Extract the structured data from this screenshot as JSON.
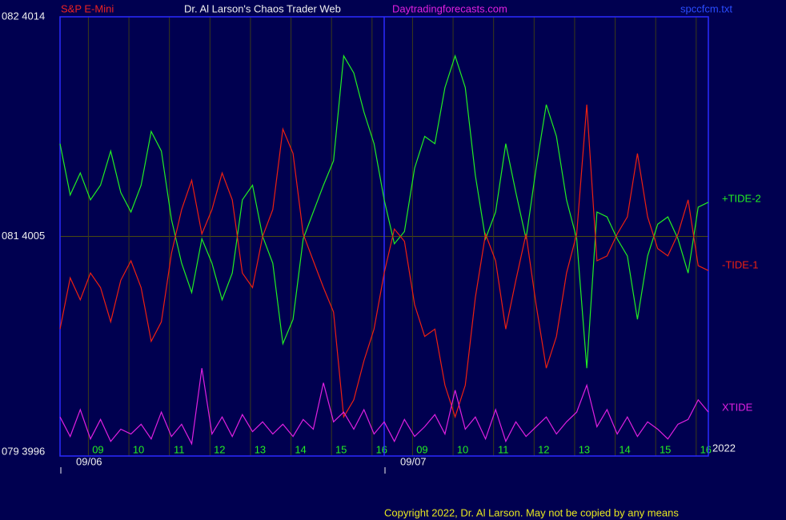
{
  "chart_data": {
    "type": "line",
    "instrument": "S&P E-Mini",
    "title": "Dr. Al Larson's Chaos Trader Web",
    "website": "Daytradingforecasts.com",
    "file_name": "spccfcm.txt",
    "year": "2022",
    "copyright": "Copyright 2022, Dr. Al Larson. May not be copied by any means",
    "x": [
      0,
      0.25,
      0.5,
      0.75,
      1,
      1.25,
      1.5,
      1.75,
      2,
      2.25,
      2.5,
      2.75,
      3,
      3.25,
      3.5,
      3.75,
      4,
      4.25,
      4.5,
      4.75,
      5,
      5.25,
      5.5,
      5.75,
      6,
      6.25,
      6.5,
      6.75,
      7,
      7.25,
      7.5,
      7.75,
      8,
      8.25,
      8.5,
      8.75,
      9,
      9.25,
      9.5,
      9.75,
      10,
      10.25,
      10.5,
      10.75,
      11,
      11.25,
      11.5,
      11.75,
      12,
      12.25,
      12.5,
      12.75,
      13,
      13.25,
      13.5,
      13.75,
      14,
      14.25,
      14.5,
      14.75,
      15,
      15.25,
      15.5,
      15.75,
      16
    ],
    "xlim": [
      0,
      16
    ],
    "xticks": [
      {
        "value": 0.7,
        "label": "09"
      },
      {
        "value": 1.7,
        "label": "10"
      },
      {
        "value": 2.7,
        "label": "11"
      },
      {
        "value": 3.7,
        "label": "12"
      },
      {
        "value": 4.7,
        "label": "13"
      },
      {
        "value": 5.7,
        "label": "14"
      },
      {
        "value": 6.7,
        "label": "15"
      },
      {
        "value": 7.7,
        "label": "16"
      },
      {
        "value": 8.7,
        "label": "09"
      },
      {
        "value": 9.7,
        "label": "10"
      },
      {
        "value": 10.7,
        "label": "11"
      },
      {
        "value": 11.7,
        "label": "12"
      },
      {
        "value": 12.7,
        "label": "13"
      },
      {
        "value": 13.7,
        "label": "14"
      },
      {
        "value": 14.7,
        "label": "15"
      },
      {
        "value": 15.7,
        "label": "16"
      }
    ],
    "date_ticks": [
      {
        "value": 0,
        "label": "09/06"
      },
      {
        "value": 8,
        "label": "09/07"
      }
    ],
    "ylim": [
      3996,
      4014
    ],
    "yticks": [
      {
        "value": 3996,
        "label": "079  3996"
      },
      {
        "value": 4005,
        "label": "081  4005"
      },
      {
        "value": 4014,
        "label": "082  4014"
      }
    ],
    "grid": true,
    "series": [
      {
        "name": "+TIDE-2",
        "color": "#22ee22",
        "values": [
          4008.8,
          4006.7,
          4007.6,
          4006.5,
          4007.1,
          4008.5,
          4006.8,
          4006.0,
          4007.1,
          4009.3,
          4008.5,
          4005.7,
          4003.9,
          4002.7,
          4004.9,
          4003.9,
          4002.4,
          4003.5,
          4006.5,
          4007.1,
          4005.0,
          4003.9,
          4000.6,
          4001.6,
          4004.9,
          4006.0,
          4007.1,
          4008.1,
          4012.4,
          4011.7,
          4010.1,
          4008.8,
          4006.5,
          4004.7,
          4005.2,
          4007.8,
          4009.1,
          4008.8,
          4011.1,
          4012.4,
          4011.1,
          4007.5,
          4004.9,
          4006.0,
          4008.8,
          4006.8,
          4004.9,
          4007.8,
          4010.4,
          4009.1,
          4006.5,
          4004.9,
          3999.6,
          4006.0,
          4005.8,
          4004.9,
          4004.2,
          4001.6,
          4004.2,
          4005.5,
          4005.8,
          4004.9,
          4003.5,
          4006.2,
          4006.4
        ]
      },
      {
        "name": "-TIDE-1",
        "color": "#ee2010",
        "values": [
          4001.2,
          4003.3,
          4002.4,
          4003.5,
          4002.9,
          4001.5,
          4003.2,
          4004.0,
          4002.9,
          4000.7,
          4001.5,
          4004.3,
          4006.1,
          4007.3,
          4005.1,
          4006.1,
          4007.6,
          4006.5,
          4003.5,
          4002.9,
          4005.0,
          4006.1,
          4009.4,
          4008.4,
          4005.1,
          4004.0,
          4002.9,
          4001.9,
          3997.6,
          3998.3,
          3999.9,
          4001.2,
          4003.5,
          4005.3,
          4004.8,
          4002.2,
          4000.9,
          4001.2,
          3998.9,
          3997.6,
          3998.9,
          4002.5,
          4005.1,
          4004.0,
          4001.2,
          4003.2,
          4005.1,
          4002.2,
          3999.6,
          4000.9,
          4003.5,
          4005.1,
          4010.4,
          4004.0,
          4004.2,
          4005.1,
          4005.8,
          4008.4,
          4005.8,
          4004.5,
          4004.2,
          4005.1,
          4006.5,
          4003.8,
          4003.6
        ]
      },
      {
        "name": "XTIDE",
        "color": "#e020e0",
        "values": [
          3997.6,
          3996.8,
          3997.9,
          3996.7,
          3997.5,
          3996.6,
          3997.1,
          3996.9,
          3997.3,
          3996.7,
          3997.8,
          3996.8,
          3997.3,
          3996.5,
          3999.6,
          3996.9,
          3997.6,
          3996.8,
          3997.7,
          3997.0,
          3997.4,
          3996.9,
          3997.3,
          3996.8,
          3997.5,
          3997.1,
          3999.0,
          3997.4,
          3997.8,
          3997.1,
          3997.9,
          3996.9,
          3997.4,
          3996.6,
          3997.5,
          3996.8,
          3997.2,
          3997.7,
          3996.9,
          3998.7,
          3997.1,
          3997.6,
          3996.7,
          3997.9,
          3996.6,
          3997.4,
          3996.8,
          3997.2,
          3997.6,
          3996.9,
          3997.4,
          3997.8,
          3998.9,
          3997.2,
          3997.9,
          3996.9,
          3997.6,
          3996.8,
          3997.4,
          3997.1,
          3996.7,
          3997.3,
          3997.5,
          3998.3,
          3997.8
        ]
      }
    ]
  }
}
